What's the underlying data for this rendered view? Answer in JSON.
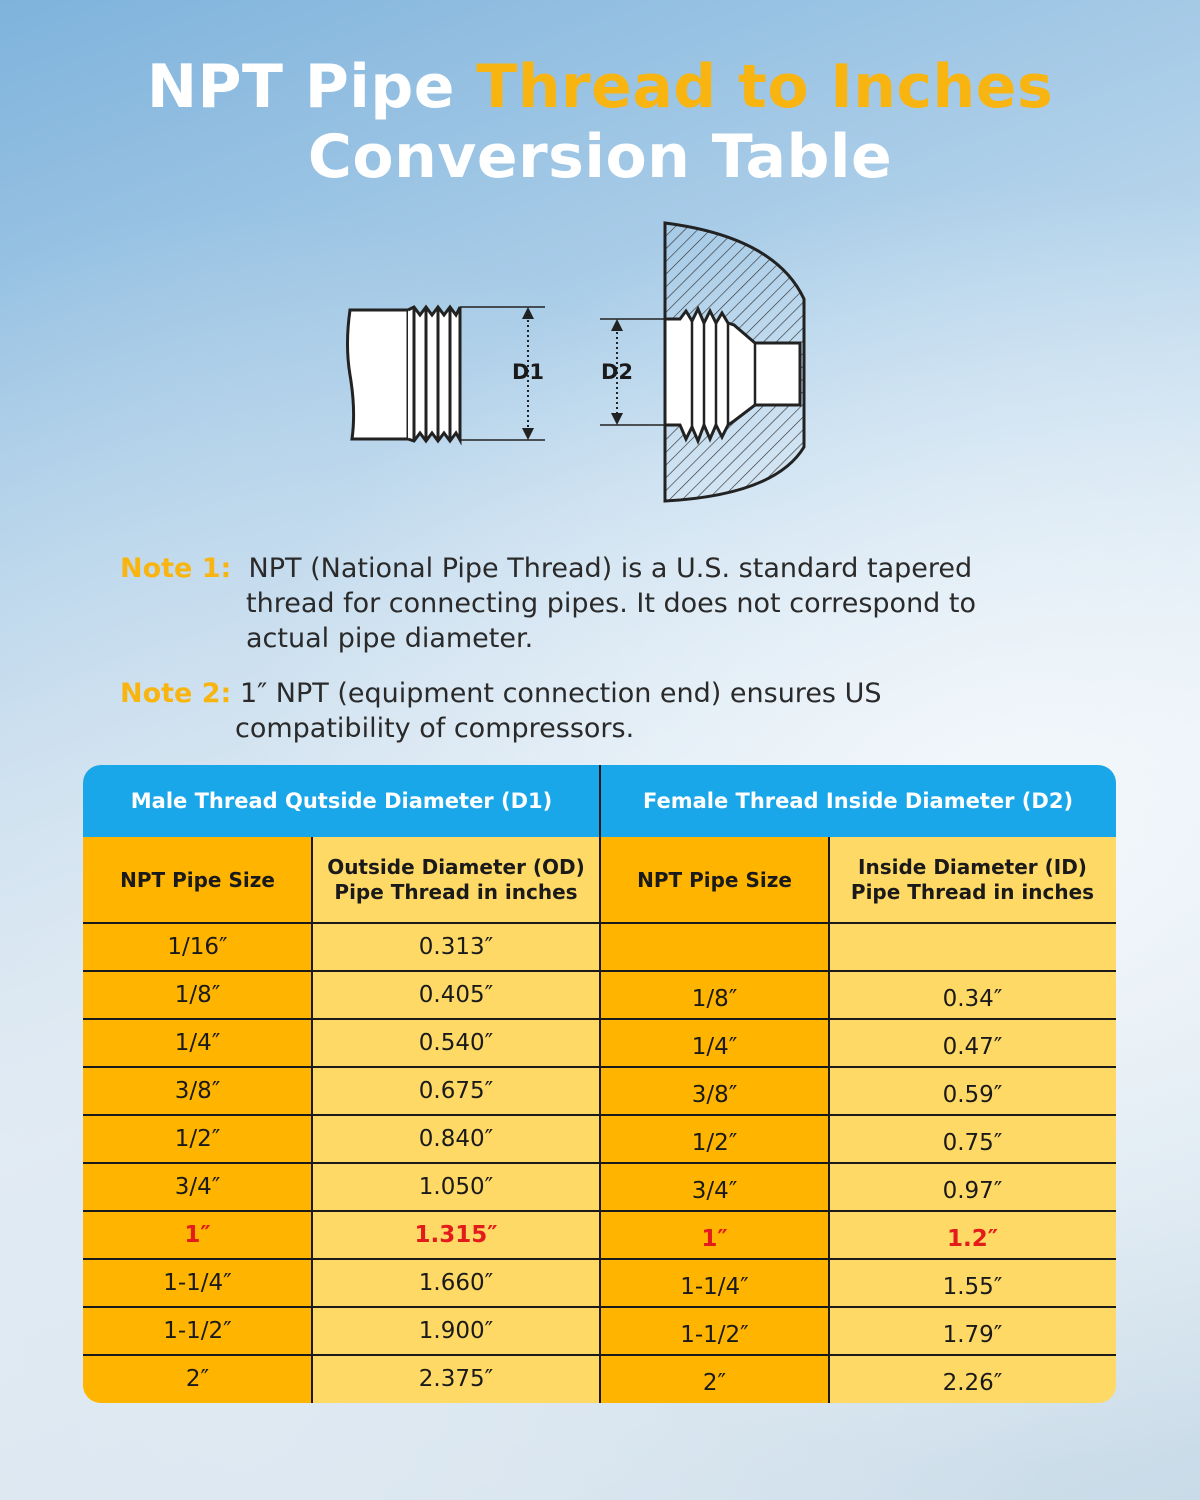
{
  "title": {
    "line1_white": "NPT Pipe ",
    "line1_accent": "Thread to Inches",
    "line2": "Conversion Table"
  },
  "diagram": {
    "d1_label": "D1",
    "d2_label": "D2"
  },
  "notes": [
    {
      "label": "Note 1:",
      "line1": "NPT (National Pipe Thread) is a U.S. standard tapered",
      "line2": "thread for connecting pipes. It does not correspond to",
      "line3": "actual pipe diameter."
    },
    {
      "label": "Note 2:",
      "line1": "1″ NPT (equipment connection end) ensures US",
      "line2": "compatibility of compressors."
    }
  ],
  "table": {
    "group_headers": [
      "Male Thread Qutside Diameter (D1)",
      "Female Thread Inside Diameter (D2)"
    ],
    "column_headers": [
      {
        "line1": "NPT Pipe Size",
        "line2": ""
      },
      {
        "line1": "Outside Diameter (OD)",
        "line2": "Pipe Thread in inches"
      },
      {
        "line1": "NPT Pipe Size",
        "line2": ""
      },
      {
        "line1": "Inside Diameter (ID)",
        "line2": "Pipe Thread in inches"
      }
    ],
    "rows": [
      [
        "1/16″",
        "0.313″",
        "",
        ""
      ],
      [
        "1/8″",
        "0.405″",
        "1/8″",
        "0.34″"
      ],
      [
        "1/4″",
        "0.540″",
        "1/4″",
        "0.47″"
      ],
      [
        "3/8″",
        "0.675″",
        "3/8″",
        "0.59″"
      ],
      [
        "1/2″",
        "0.840″",
        "1/2″",
        "0.75″"
      ],
      [
        "3/4″",
        "1.050″",
        "3/4″",
        "0.97″"
      ],
      [
        "1″",
        "1.315″",
        "1″",
        "1.2″"
      ],
      [
        "1-1/4″",
        "1.660″",
        "1-1/4″",
        "1.55″"
      ],
      [
        "1-1/2″",
        "1.900″",
        "1-1/2″",
        "1.79″"
      ],
      [
        "2″",
        "2.375″",
        "2″",
        "2.26″"
      ]
    ],
    "highlight_row": 6,
    "colors": {
      "blue_header": "#1aa7ea",
      "orange": "#ffb400",
      "yellow": "#ffd966",
      "highlight_text": "#e31b1b",
      "accent": "#f8b512"
    }
  }
}
